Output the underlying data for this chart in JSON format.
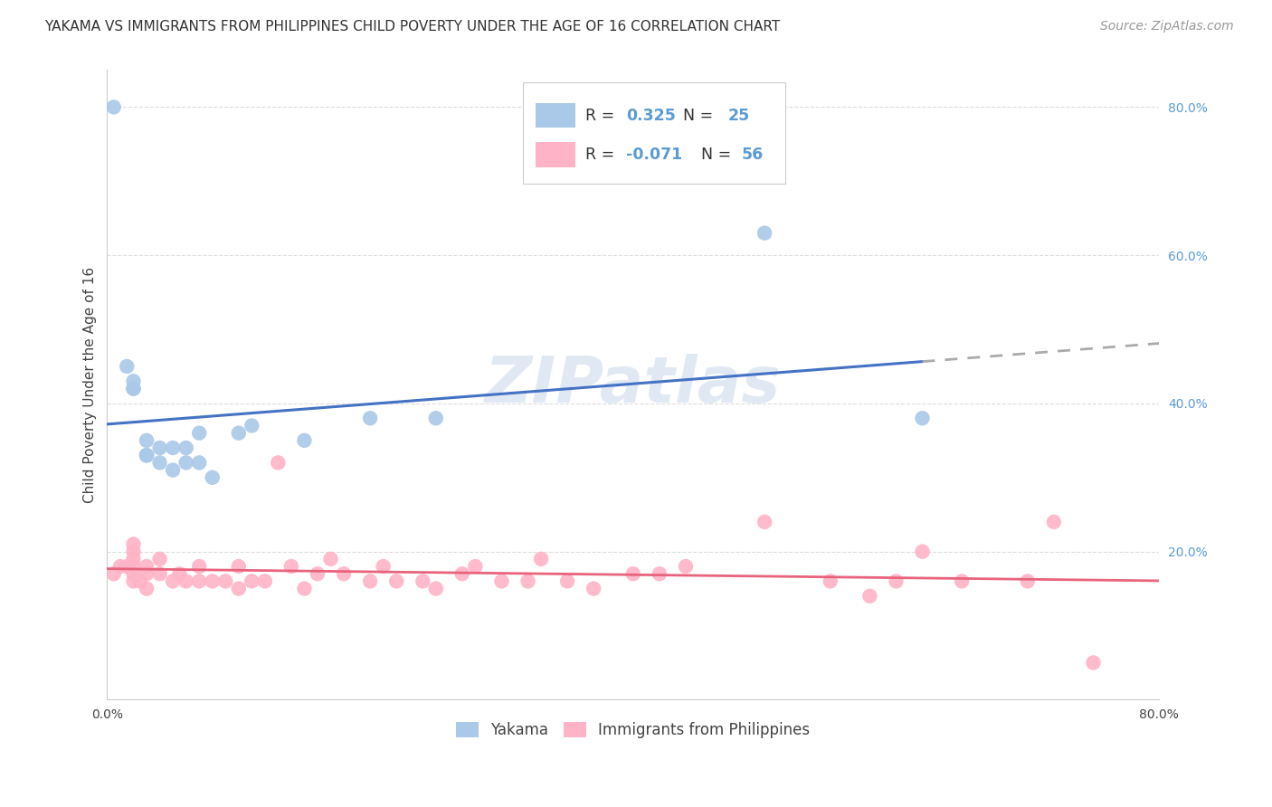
{
  "title": "YAKAMA VS IMMIGRANTS FROM PHILIPPINES CHILD POVERTY UNDER THE AGE OF 16 CORRELATION CHART",
  "source": "Source: ZipAtlas.com",
  "ylabel": "Child Poverty Under the Age of 16",
  "xlim": [
    0.0,
    0.8
  ],
  "ylim": [
    0.0,
    0.85
  ],
  "background_color": "#ffffff",
  "watermark_text": "ZIPatlas",
  "yakama_x": [
    0.005,
    0.02,
    0.02,
    0.02,
    0.03,
    0.03,
    0.03,
    0.03,
    0.04,
    0.04,
    0.05,
    0.05,
    0.06,
    0.06,
    0.07,
    0.07,
    0.08,
    0.1,
    0.11,
    0.15,
    0.2,
    0.25,
    0.5,
    0.62,
    0.015
  ],
  "yakama_y": [
    0.8,
    0.42,
    0.42,
    0.43,
    0.33,
    0.33,
    0.33,
    0.35,
    0.32,
    0.34,
    0.31,
    0.34,
    0.32,
    0.34,
    0.32,
    0.36,
    0.3,
    0.36,
    0.37,
    0.35,
    0.38,
    0.38,
    0.63,
    0.38,
    0.45
  ],
  "philippines_x": [
    0.005,
    0.01,
    0.015,
    0.02,
    0.02,
    0.02,
    0.02,
    0.02,
    0.02,
    0.025,
    0.03,
    0.03,
    0.03,
    0.04,
    0.04,
    0.05,
    0.055,
    0.06,
    0.07,
    0.07,
    0.08,
    0.09,
    0.1,
    0.1,
    0.11,
    0.12,
    0.13,
    0.14,
    0.15,
    0.16,
    0.17,
    0.18,
    0.2,
    0.21,
    0.22,
    0.24,
    0.25,
    0.27,
    0.28,
    0.3,
    0.32,
    0.33,
    0.35,
    0.37,
    0.4,
    0.42,
    0.44,
    0.5,
    0.55,
    0.58,
    0.6,
    0.62,
    0.65,
    0.7,
    0.72,
    0.75
  ],
  "philippines_y": [
    0.17,
    0.18,
    0.18,
    0.16,
    0.17,
    0.18,
    0.19,
    0.2,
    0.21,
    0.16,
    0.15,
    0.17,
    0.18,
    0.17,
    0.19,
    0.16,
    0.17,
    0.16,
    0.16,
    0.18,
    0.16,
    0.16,
    0.15,
    0.18,
    0.16,
    0.16,
    0.32,
    0.18,
    0.15,
    0.17,
    0.19,
    0.17,
    0.16,
    0.18,
    0.16,
    0.16,
    0.15,
    0.17,
    0.18,
    0.16,
    0.16,
    0.19,
    0.16,
    0.15,
    0.17,
    0.17,
    0.18,
    0.24,
    0.16,
    0.14,
    0.16,
    0.2,
    0.16,
    0.16,
    0.24,
    0.05
  ],
  "yakama_color": "#aac8e8",
  "philippines_color": "#ffb3c6",
  "yakama_line_color": "#4472c4",
  "philippines_line_color": "#e8637c",
  "R_yakama": "0.325",
  "N_yakama": "25",
  "R_philippines": "-0.071",
  "N_philippines": "56",
  "legend_label_yakama": "Yakama",
  "legend_label_philippines": "Immigrants from Philippines",
  "title_fontsize": 11,
  "axis_label_fontsize": 11,
  "tick_fontsize": 10,
  "source_fontsize": 10
}
